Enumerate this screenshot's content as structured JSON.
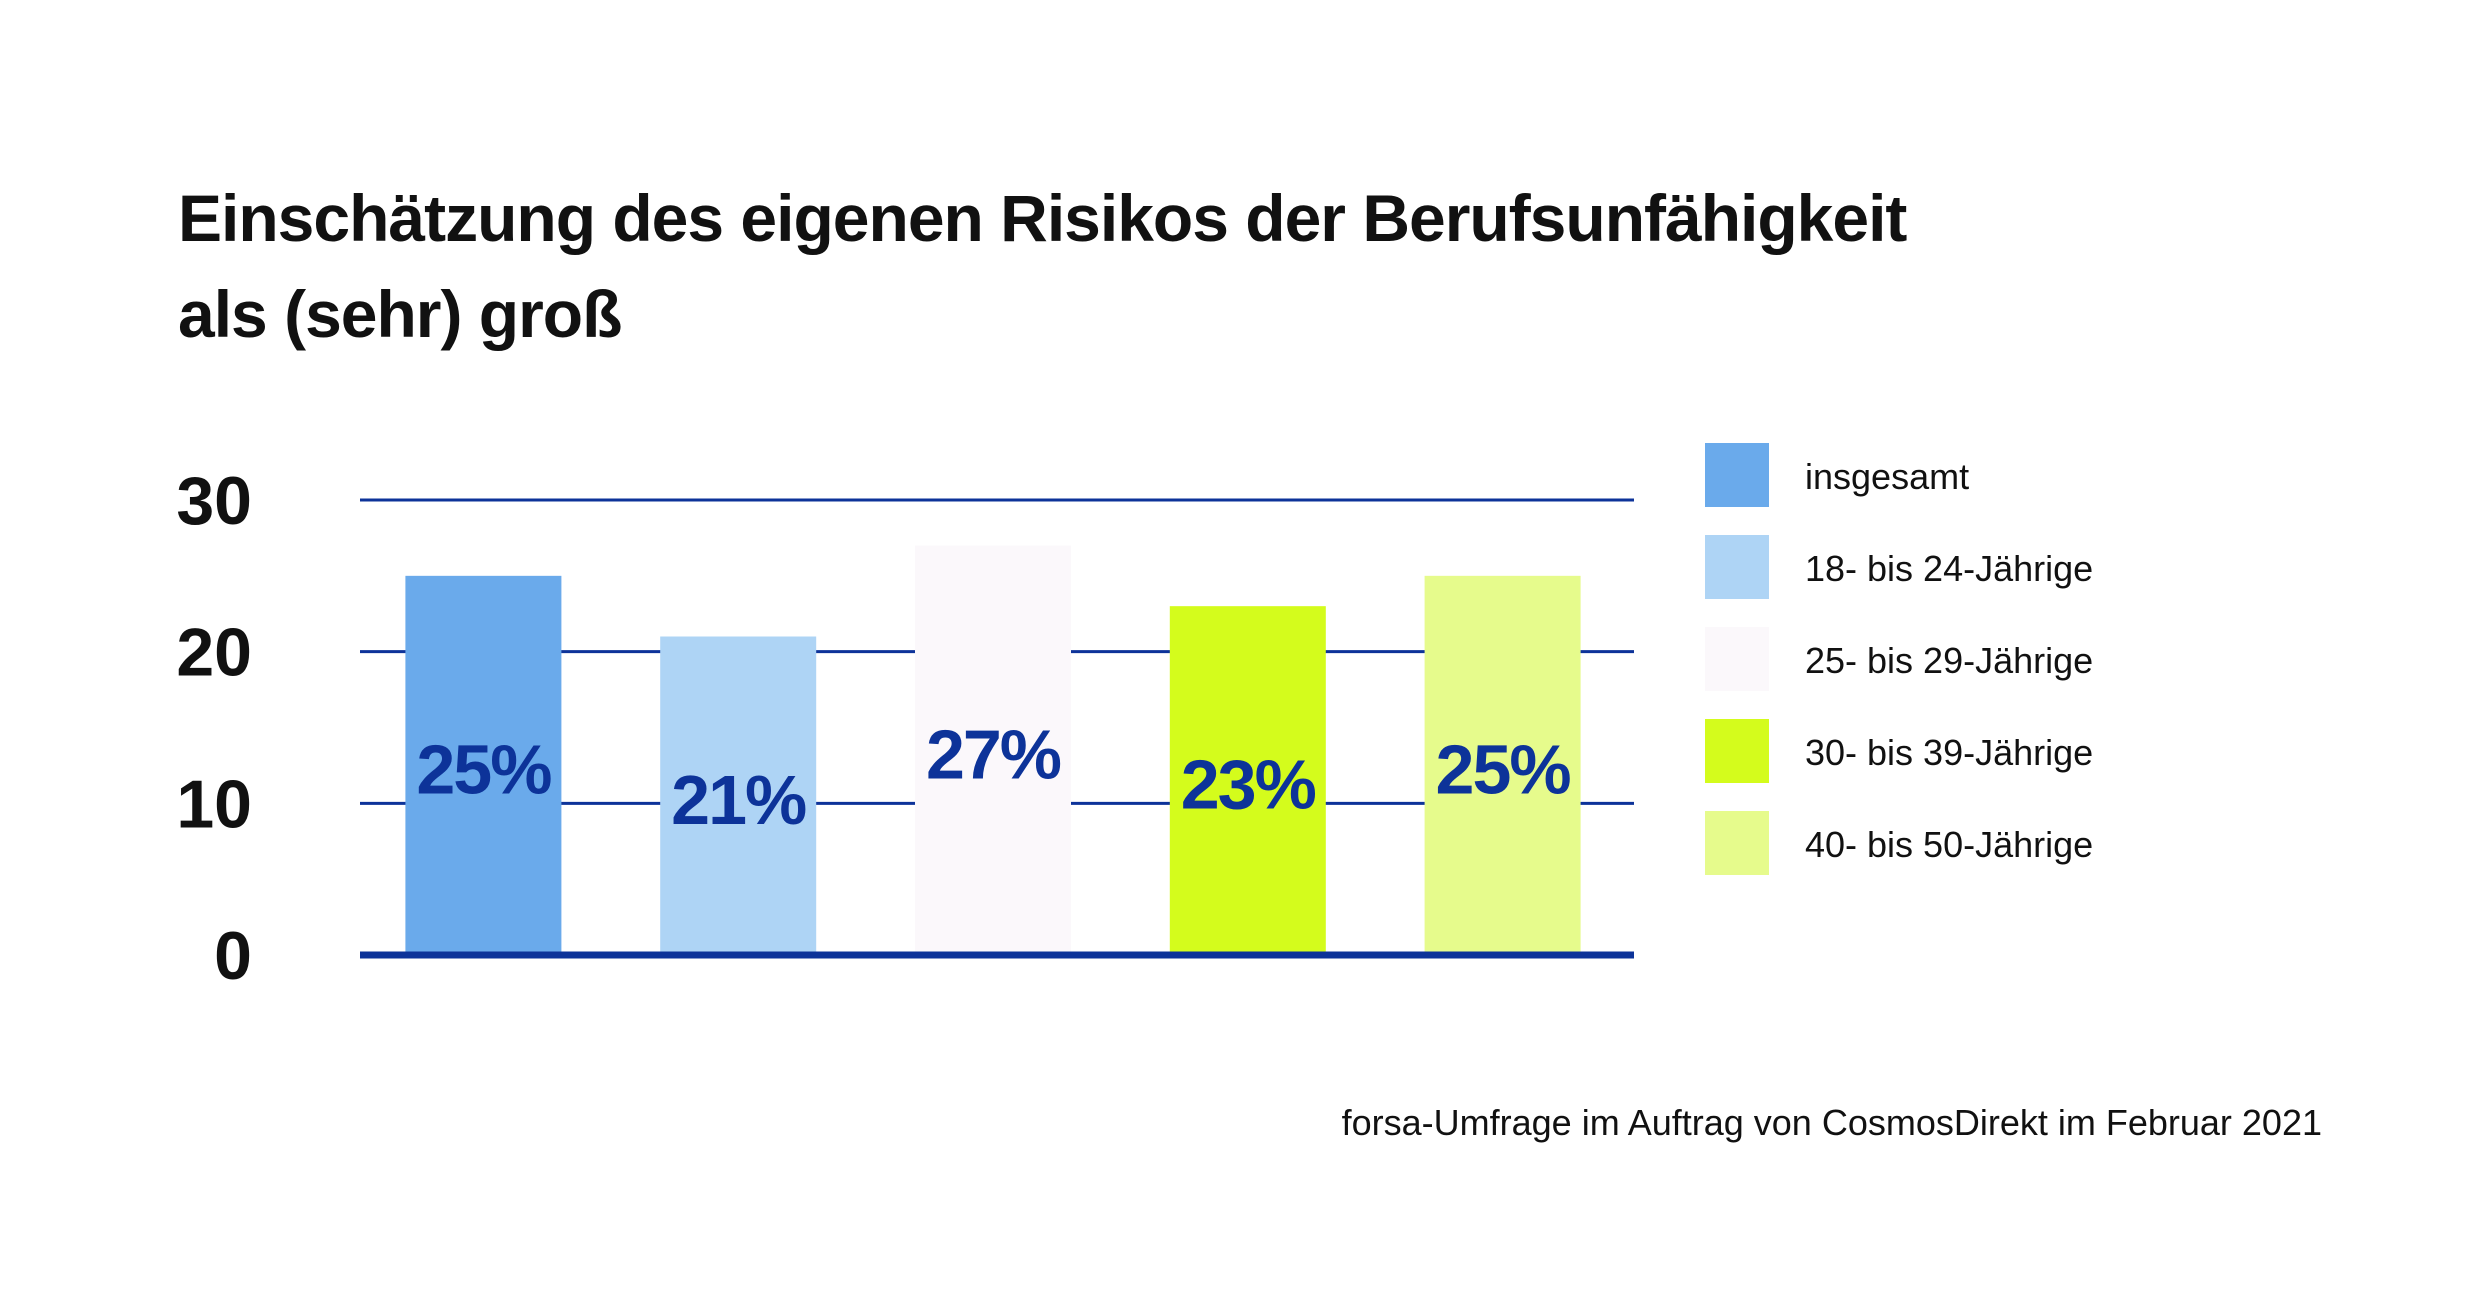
{
  "title_lines": [
    "Einschätzung des eigenen Risikos der Berufsunfähigkeit",
    "als (sehr) groß"
  ],
  "source": "forsa-Umfrage im Auftrag von CosmosDirekt im Februar 2021",
  "chart_data": {
    "type": "bar",
    "title": "Einschätzung des eigenen Risikos der Berufsunfähigkeit als (sehr) groß",
    "categories": [
      "insgesamt",
      "18- bis 24-Jährige",
      "25- bis 29-Jährige",
      "30- bis 39-Jährige",
      "40- bis 50-Jährige"
    ],
    "values": [
      25,
      21,
      27,
      23,
      25
    ],
    "value_labels": [
      "25%",
      "21%",
      "27%",
      "23%",
      "25%"
    ],
    "colors": [
      "#6aaaeb",
      "#aed4f5",
      "#fbf8fb",
      "#d4fc1c",
      "#e6fb8c"
    ],
    "label_color": "#0d3399",
    "axis_color": "#0d3399",
    "ylim": [
      0,
      30
    ],
    "yticks": [
      0,
      10,
      20,
      30
    ],
    "grid": true,
    "legend": "right",
    "xlabel": "",
    "ylabel": ""
  }
}
